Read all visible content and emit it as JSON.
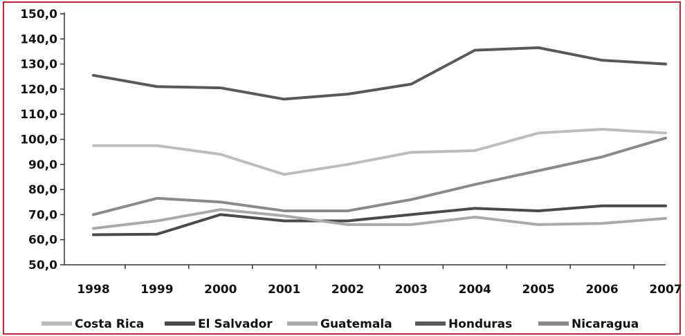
{
  "chart_data": {
    "type": "line",
    "title": "",
    "xlabel": "",
    "ylabel": "",
    "categories": [
      "1998",
      "1999",
      "2000",
      "2001",
      "2002",
      "2003",
      "2004",
      "2005",
      "2006",
      "2007"
    ],
    "ylim": [
      50,
      150
    ],
    "yticks": [
      "50,0",
      "60,0",
      "70,0",
      "80,0",
      "90,0",
      "100,0",
      "110,0",
      "120,0",
      "130,0",
      "140,0",
      "150,0"
    ],
    "grid": false,
    "legend_position": "bottom",
    "series": [
      {
        "name": "Costa Rica",
        "color": "#bdbdbd",
        "values": [
          97.5,
          97.5,
          94.0,
          86.0,
          90.0,
          94.8,
          95.5,
          102.5,
          104.0,
          102.5
        ]
      },
      {
        "name": "El Salvador",
        "color": "#4a4a4a",
        "values": [
          62.0,
          62.2,
          70.0,
          67.5,
          67.5,
          70.0,
          72.5,
          71.5,
          73.5,
          73.5
        ]
      },
      {
        "name": "Guatemala",
        "color": "#aaaaaa",
        "values": [
          64.5,
          67.5,
          72.0,
          69.5,
          66.0,
          66.0,
          69.0,
          66.0,
          66.5,
          68.5
        ]
      },
      {
        "name": "Honduras",
        "color": "#595959",
        "values": [
          125.5,
          121.0,
          120.5,
          116.0,
          118.0,
          122.0,
          135.5,
          136.5,
          131.5,
          130.0
        ]
      },
      {
        "name": "Nicaragua",
        "color": "#8a8a8a",
        "values": [
          70.0,
          76.5,
          75.0,
          71.5,
          71.5,
          76.0,
          82.0,
          87.5,
          93.0,
          100.5
        ]
      }
    ]
  }
}
